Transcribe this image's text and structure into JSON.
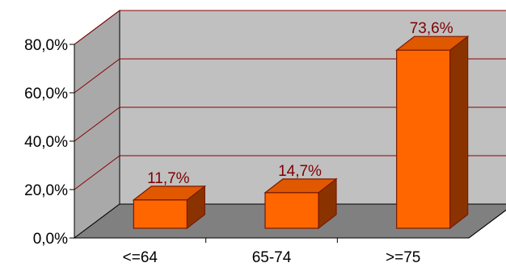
{
  "chart_data": {
    "type": "bar",
    "categories": [
      "<=64",
      "65-74",
      ">=75"
    ],
    "values": [
      11.7,
      14.7,
      73.6
    ],
    "data_labels": [
      "11,7%",
      "14,7%",
      "73,6%"
    ],
    "y_ticks": [
      0,
      20,
      40,
      60,
      80
    ],
    "y_tick_labels": [
      "0,0%",
      "20,0%",
      "40,0%",
      "60,0%",
      "80,0%"
    ],
    "ylim": [
      0,
      80
    ],
    "grid": true,
    "legend": "none",
    "style": "3d",
    "colors": {
      "bar_front": "#ff6600",
      "bar_top": "#e05800",
      "bar_side": "#8a3300",
      "bar_edge": "#7a1a00",
      "back_wall": "#c0c0c0",
      "side_wall": "#a9a9a9",
      "floor": "#808080",
      "gridline": "#8b0000",
      "data_label": "#800000"
    }
  }
}
